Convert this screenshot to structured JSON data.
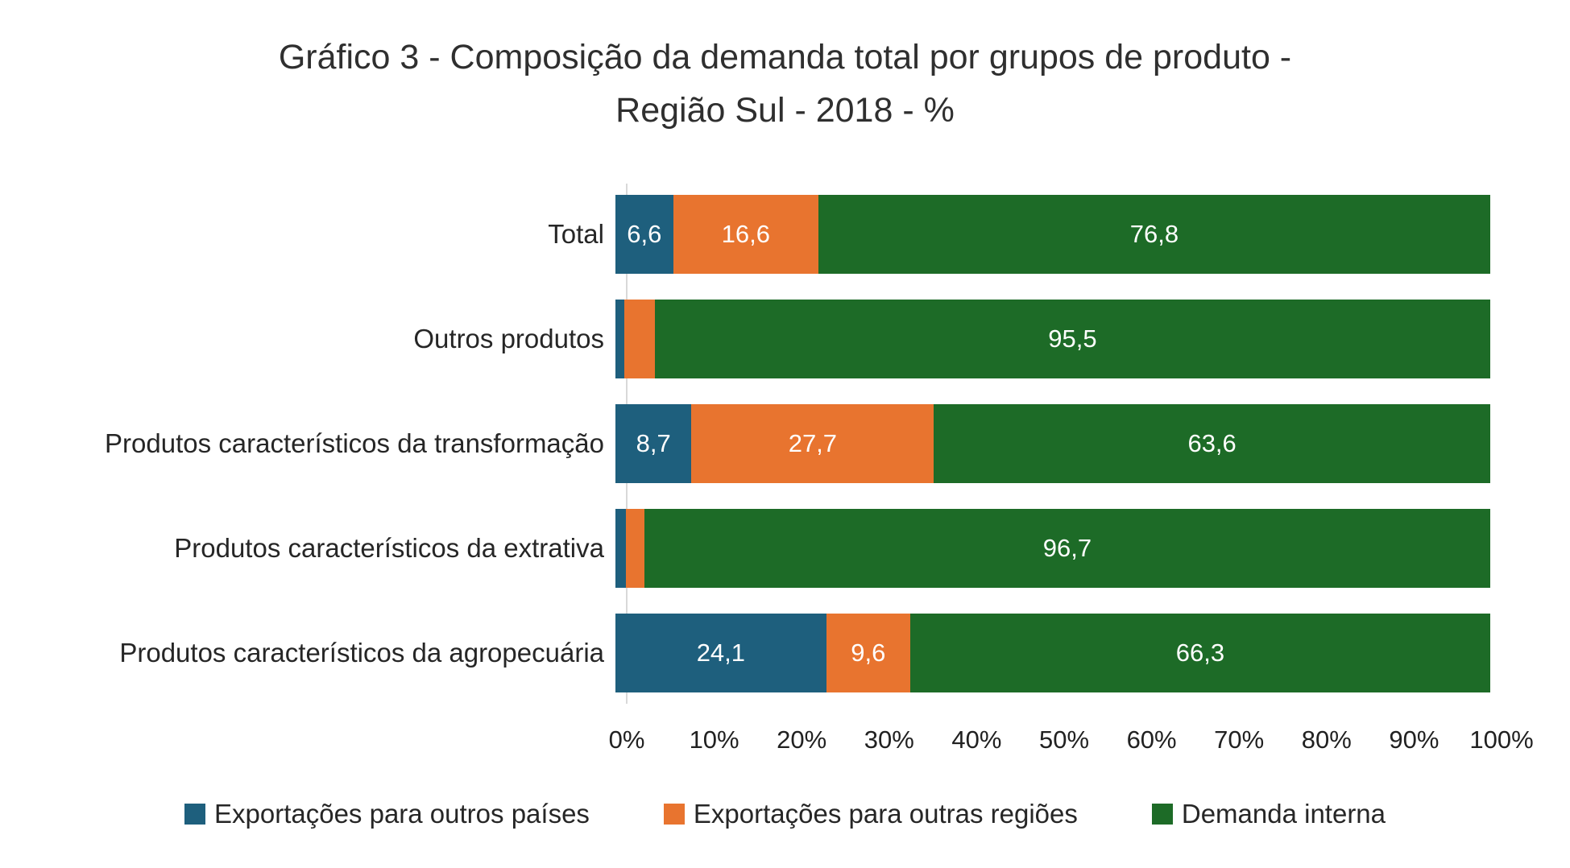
{
  "chart_data": {
    "type": "bar",
    "variant": "horizontal-stacked",
    "title": "Gráfico 3 - Composição da demanda total por grupos de produto - Região Sul - 2018 - %",
    "title_lines": [
      "Gráfico 3 - Composição da demanda total por grupos de produto -",
      "Região Sul - 2018 - %"
    ],
    "unit": "%",
    "categories": [
      "Total",
      "Outros produtos",
      "Produtos característicos da transformação",
      "Produtos característicos da extrativa",
      "Produtos característicos da agropecuária"
    ],
    "series": [
      {
        "name": "Exportações para outros países",
        "color": "#1E5F7D",
        "values": [
          6.6,
          1.0,
          8.7,
          1.2,
          24.1
        ],
        "labels": [
          "6,6",
          "",
          "8,7",
          "",
          "24,1"
        ]
      },
      {
        "name": "Exportações para outras regiões",
        "color": "#E8742F",
        "values": [
          16.6,
          3.5,
          27.7,
          2.1,
          9.6
        ],
        "labels": [
          "16,6",
          "",
          "27,7",
          "",
          "9,6"
        ]
      },
      {
        "name": "Demanda interna",
        "color": "#1D6B27",
        "values": [
          76.8,
          95.5,
          63.6,
          96.7,
          66.3
        ],
        "labels": [
          "76,8",
          "95,5",
          "63,6",
          "96,7",
          "66,3"
        ]
      }
    ],
    "x_axis": {
      "min": 0,
      "max": 100,
      "tick_labels": [
        "0%",
        "10%",
        "20%",
        "30%",
        "40%",
        "50%",
        "60%",
        "70%",
        "80%",
        "90%",
        "100%"
      ]
    },
    "legend_position": "bottom",
    "grid": false,
    "label_color": "#ffffff",
    "axis_line_color": "#d9d9d9"
  }
}
